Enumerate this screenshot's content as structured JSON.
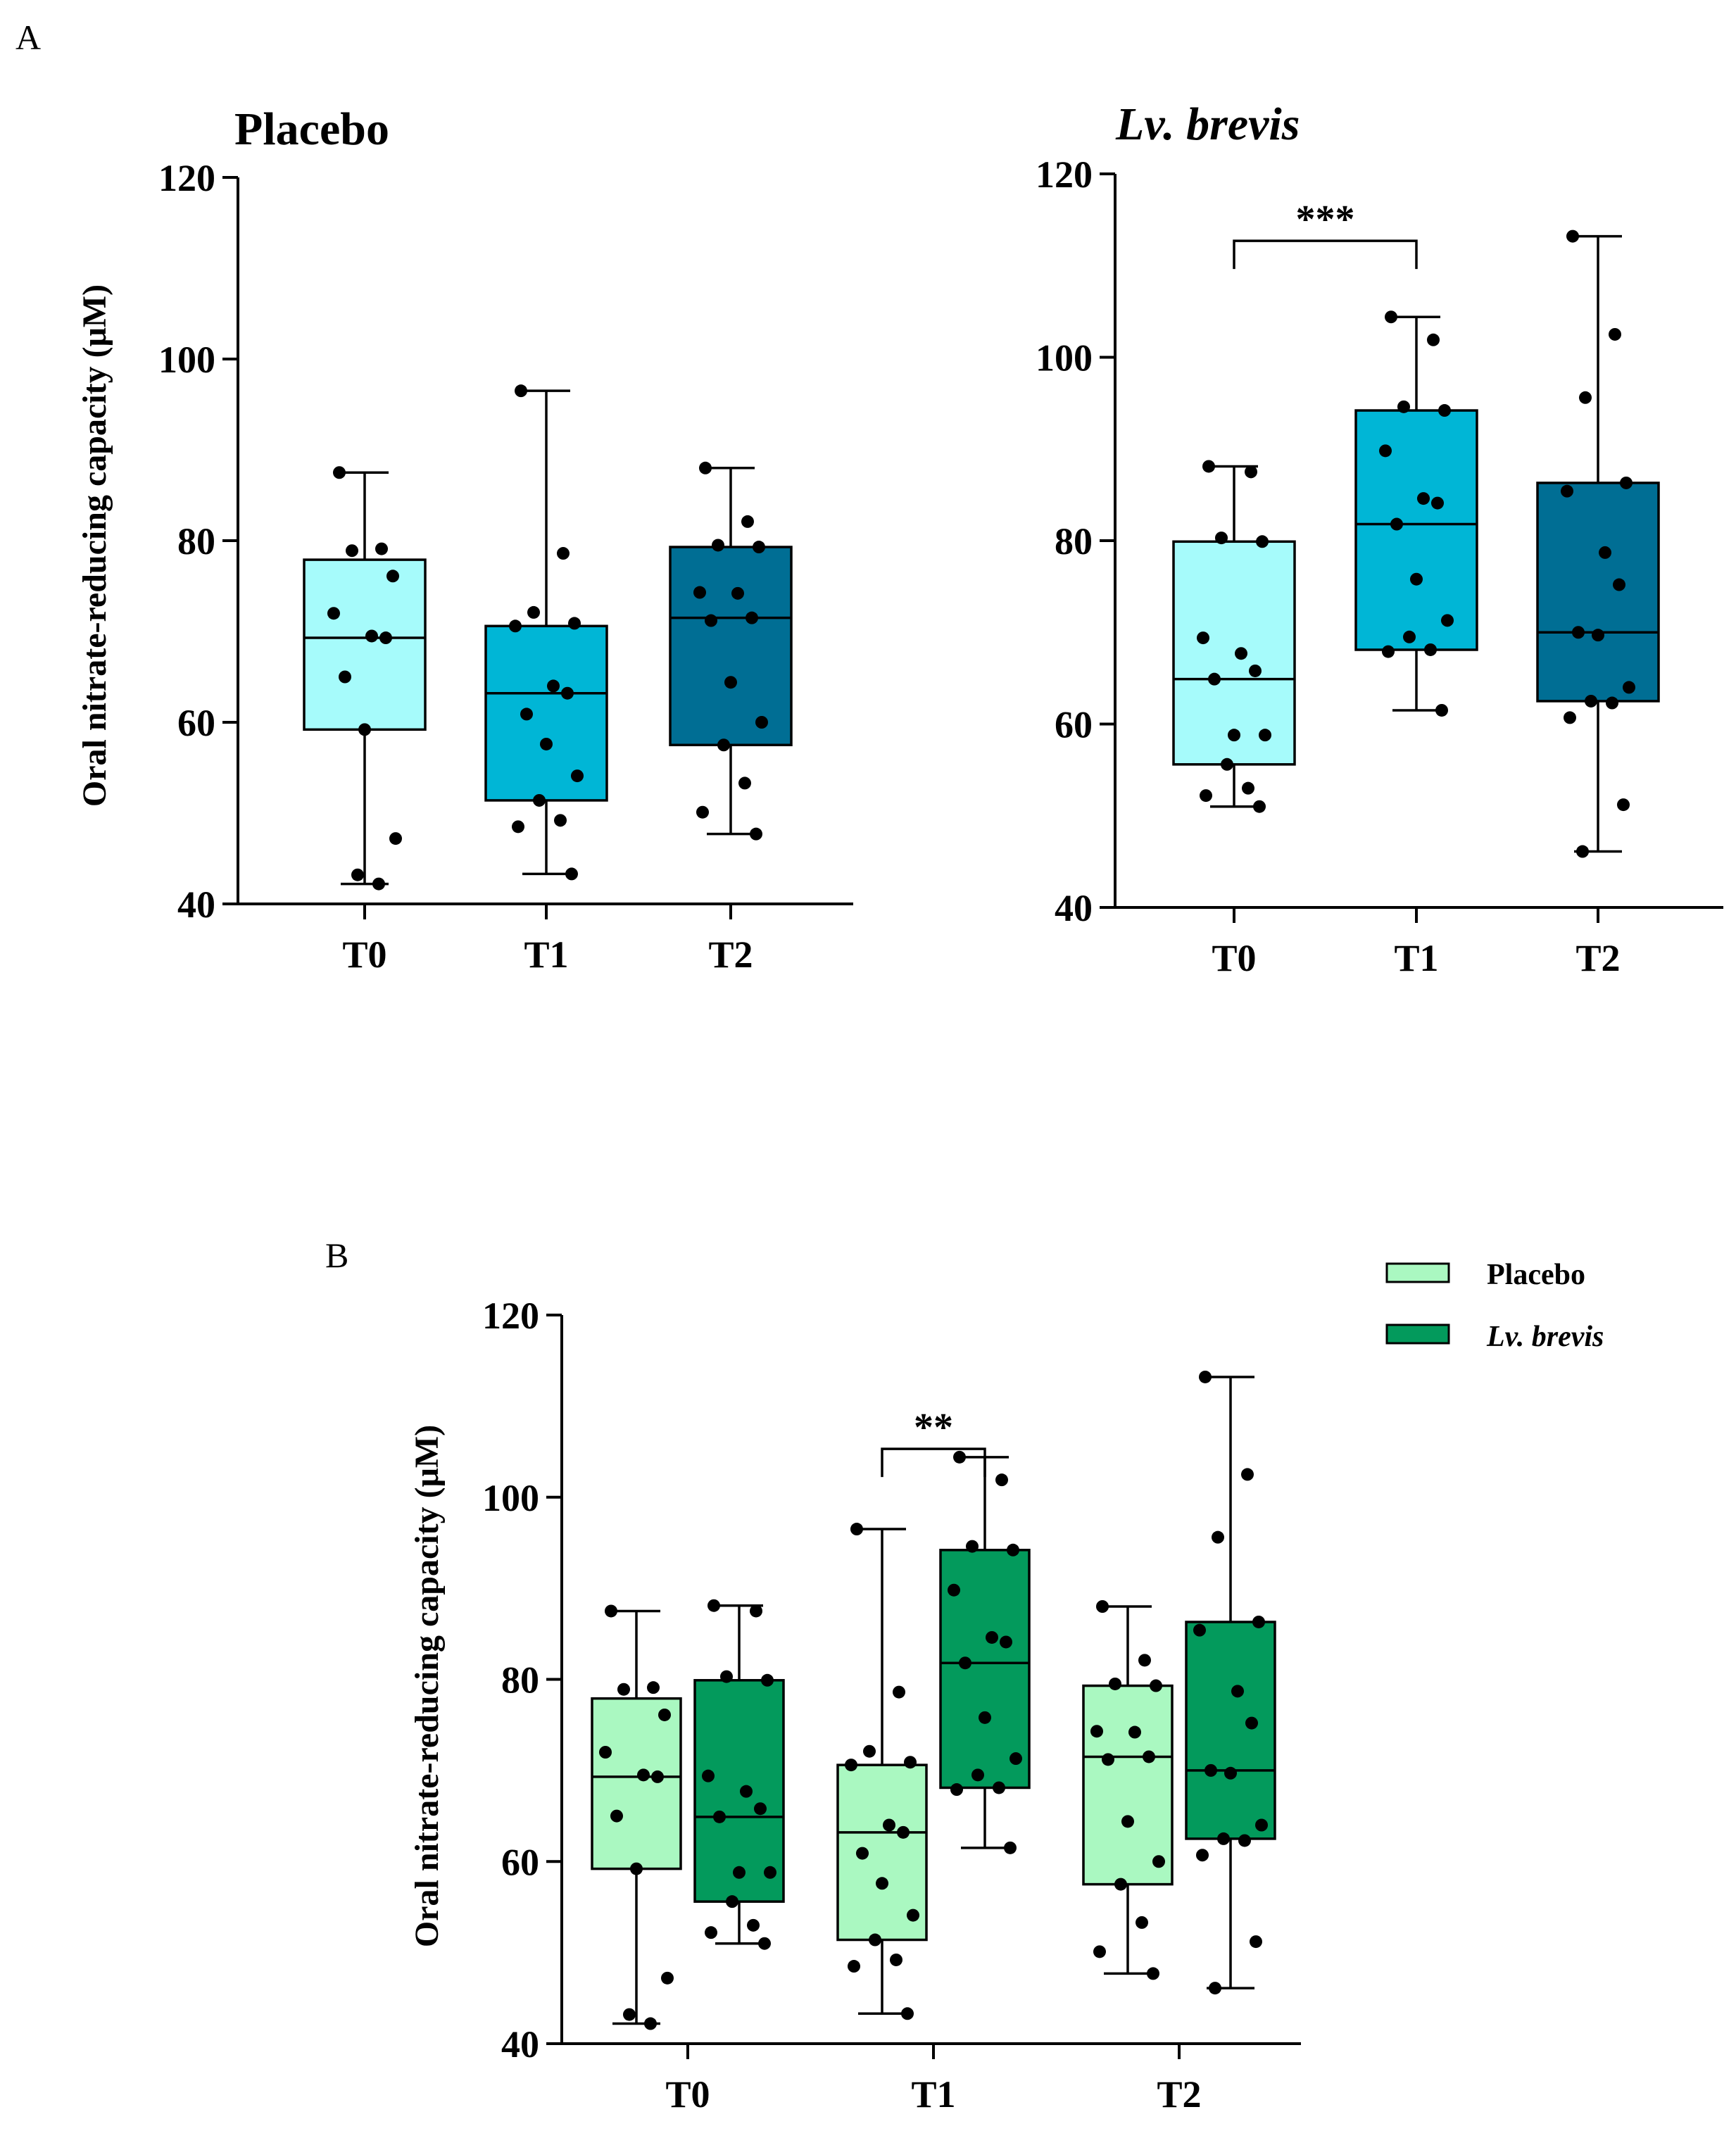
{
  "panel_labels": {
    "a": "A",
    "b": "B"
  },
  "colors": {
    "a_T0": "#a6fbfb",
    "a_T1": "#00b6d6",
    "a_T2": "#006e94",
    "b_placebo": "#aaf8c1",
    "b_brevis": "#039a5c",
    "ink": "#000000"
  },
  "chart_data": [
    {
      "id": "A-placebo",
      "type": "box",
      "title": "Placebo",
      "ylabel": "Oral nitrate-reducing capacity (μM)",
      "ylim": [
        40,
        120
      ],
      "yticks": [
        "40",
        "60",
        "80",
        "100",
        "120"
      ],
      "categories": [
        "T0",
        "T1",
        "T2"
      ],
      "boxes": [
        {
          "category": "T0",
          "min": 42.2,
          "q1": 59.2,
          "median": 69.3,
          "q3": 77.9,
          "max": 87.5,
          "points": [
            87.5,
            79.1,
            78.9,
            76.1,
            72.0,
            69.5,
            69.3,
            65.0,
            59.2,
            47.2,
            43.2,
            42.2
          ]
        },
        {
          "category": "T1",
          "min": 43.3,
          "q1": 51.4,
          "median": 63.2,
          "q3": 70.6,
          "max": 96.5,
          "points": [
            96.5,
            78.6,
            72.1,
            70.9,
            70.6,
            64.0,
            63.2,
            60.9,
            57.6,
            54.1,
            51.4,
            49.2,
            48.5,
            43.3
          ]
        },
        {
          "category": "T2",
          "min": 47.7,
          "q1": 57.5,
          "median": 71.5,
          "q3": 79.3,
          "max": 88.0,
          "points": [
            88.0,
            82.1,
            79.5,
            79.3,
            74.3,
            74.2,
            71.5,
            71.2,
            64.4,
            60.0,
            57.5,
            53.3,
            50.1,
            47.7
          ]
        }
      ]
    },
    {
      "id": "A-brevis",
      "type": "box",
      "title": "Lv. brevis",
      "ylim": [
        40,
        120
      ],
      "yticks": [
        "40",
        "60",
        "80",
        "100",
        "120"
      ],
      "categories": [
        "T0",
        "T1",
        "T2"
      ],
      "boxes": [
        {
          "category": "T0",
          "min": 51.0,
          "q1": 55.6,
          "median": 64.9,
          "q3": 79.9,
          "max": 88.1,
          "points": [
            88.1,
            87.5,
            80.3,
            79.9,
            69.4,
            67.7,
            65.8,
            64.9,
            58.8,
            58.8,
            55.6,
            53.0,
            52.2,
            51.0
          ]
        },
        {
          "category": "T1",
          "min": 61.5,
          "q1": 68.1,
          "median": 81.8,
          "q3": 94.2,
          "max": 104.4,
          "points": [
            104.4,
            101.9,
            94.6,
            94.2,
            89.8,
            84.6,
            84.1,
            81.8,
            75.8,
            71.3,
            69.5,
            68.1,
            67.9,
            61.5
          ]
        },
        {
          "category": "T2",
          "min": 46.1,
          "q1": 62.5,
          "median": 70.0,
          "q3": 86.3,
          "max": 113.2,
          "points": [
            113.2,
            102.5,
            95.6,
            86.3,
            85.4,
            78.7,
            75.2,
            70.0,
            69.7,
            64.0,
            62.5,
            62.3,
            60.7,
            51.2,
            46.1
          ]
        }
      ],
      "annotations": [
        {
          "from": "T0",
          "to": "T1",
          "label": "***"
        }
      ]
    },
    {
      "id": "B",
      "type": "box",
      "ylabel": "Oral nitrate-reducing capacity (μM)",
      "ylim": [
        40,
        120
      ],
      "yticks": [
        "40",
        "60",
        "80",
        "100",
        "120"
      ],
      "categories": [
        "T0",
        "T1",
        "T2"
      ],
      "legend": {
        "position": "top-right",
        "entries": [
          "Placebo",
          "Lv. brevis"
        ]
      },
      "series": [
        {
          "name": "Placebo",
          "ref": "A-placebo"
        },
        {
          "name": "Lv. brevis",
          "ref": "A-brevis"
        }
      ],
      "annotations": [
        {
          "category": "T1",
          "label": "**"
        }
      ]
    }
  ]
}
